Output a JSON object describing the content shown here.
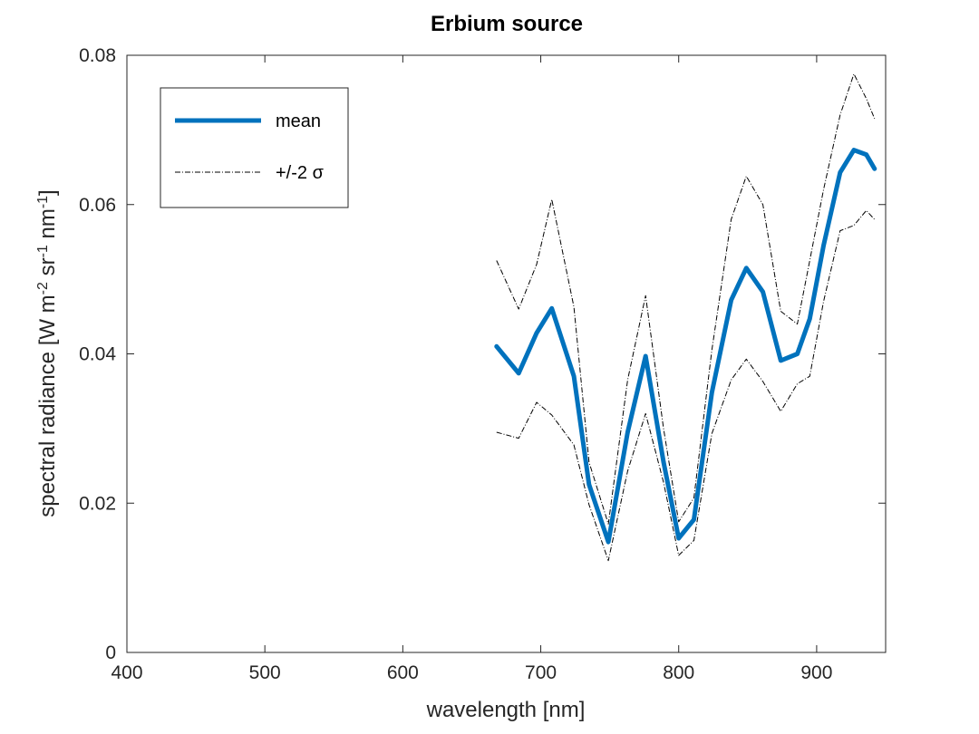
{
  "chart_data": {
    "type": "line",
    "title": "Erbium source",
    "xlabel": "wavelength [nm]",
    "ylabel": "spectral radiance [W m-2 sr-1 nm-1]",
    "ylabel_parts": [
      "spectral radiance [W m",
      "-2",
      " sr",
      "-1",
      " nm",
      "-1",
      "]"
    ],
    "xlim": [
      400,
      950
    ],
    "ylim": [
      0,
      0.08
    ],
    "xticks": [
      400,
      500,
      600,
      700,
      800,
      900
    ],
    "yticks": [
      0,
      0.02,
      0.04,
      0.06,
      0.08
    ],
    "xtick_labels": [
      "400",
      "500",
      "600",
      "700",
      "800",
      "900"
    ],
    "ytick_labels": [
      "0",
      "0.02",
      "0.04",
      "0.06",
      "0.08"
    ],
    "grid": false,
    "legend_position": "top-left",
    "x": [
      668,
      684,
      697,
      708,
      724,
      735,
      749,
      763,
      776,
      789,
      800,
      811,
      824,
      838,
      849,
      861,
      874,
      886,
      895,
      905,
      917,
      927,
      936,
      942
    ],
    "series": [
      {
        "name": "mean",
        "color": "#0072bd",
        "style": "solid",
        "values": [
          0.041,
          0.0374,
          0.0428,
          0.0461,
          0.037,
          0.0225,
          0.0148,
          0.0295,
          0.0397,
          0.0255,
          0.0153,
          0.0178,
          0.0348,
          0.0472,
          0.0515,
          0.0483,
          0.0391,
          0.04,
          0.0447,
          0.0545,
          0.0643,
          0.0673,
          0.0667,
          0.0648
        ]
      },
      {
        "name": "+/-2 σ",
        "color": "#000000",
        "style": "dashdot",
        "values": [
          0.0525,
          0.046,
          0.052,
          0.0607,
          0.0463,
          0.0255,
          0.0172,
          0.0365,
          0.0478,
          0.03,
          0.0175,
          0.0207,
          0.0405,
          0.058,
          0.0638,
          0.06,
          0.0457,
          0.044,
          0.0525,
          0.062,
          0.072,
          0.0775,
          0.0742,
          0.0715
        ]
      },
      {
        "name": "",
        "color": "#000000",
        "style": "dashdot",
        "values": [
          0.0295,
          0.0287,
          0.0335,
          0.0318,
          0.0278,
          0.0198,
          0.0123,
          0.0243,
          0.032,
          0.0228,
          0.013,
          0.015,
          0.0293,
          0.0365,
          0.0393,
          0.0363,
          0.0323,
          0.036,
          0.037,
          0.047,
          0.0565,
          0.0572,
          0.0592,
          0.058
        ]
      }
    ]
  }
}
